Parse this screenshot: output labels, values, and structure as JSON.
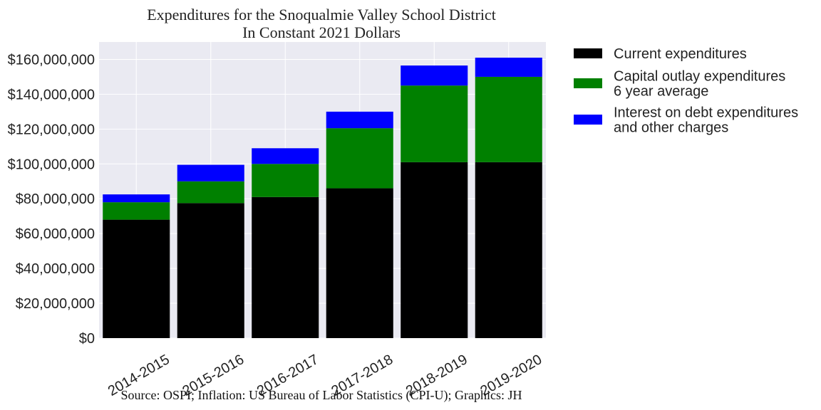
{
  "chart_data": {
    "type": "bar",
    "stacked": true,
    "title": "Expenditures for the Snoqualmie Valley School District",
    "subtitle": "In Constant 2021 Dollars",
    "source": "Source: OSPI; Inflation: US Bureau of Labor Statistics (CPI-U); Graphics: JH",
    "categories": [
      "2014-2015",
      "2015-2016",
      "2016-2017",
      "2017-2018",
      "2018-2019",
      "2019-2020"
    ],
    "series": [
      {
        "name": "Current expenditures",
        "color": "#000000",
        "values": [
          68000000,
          77500000,
          81000000,
          86000000,
          101000000,
          101000000
        ]
      },
      {
        "name": "Capital outlay expenditures\n6 year average",
        "color": "#008000",
        "values": [
          10000000,
          12500000,
          19000000,
          34500000,
          44000000,
          49000000
        ]
      },
      {
        "name": "Interest on debt expenditures\nand other charges",
        "color": "#0000ff",
        "values": [
          4500000,
          9500000,
          9000000,
          9500000,
          11500000,
          11000000
        ]
      }
    ],
    "ylim": [
      0,
      170000000
    ],
    "yticks": [
      0,
      20000000,
      40000000,
      60000000,
      80000000,
      100000000,
      120000000,
      140000000,
      160000000
    ],
    "ytick_labels": [
      "$0",
      "$20,000,000",
      "$40,000,000",
      "$60,000,000",
      "$80,000,000",
      "$100,000,000",
      "$120,000,000",
      "$140,000,000",
      "$160,000,000"
    ],
    "grid": true,
    "legend_position": "outside-right",
    "background_color": "#eaeaf2"
  }
}
